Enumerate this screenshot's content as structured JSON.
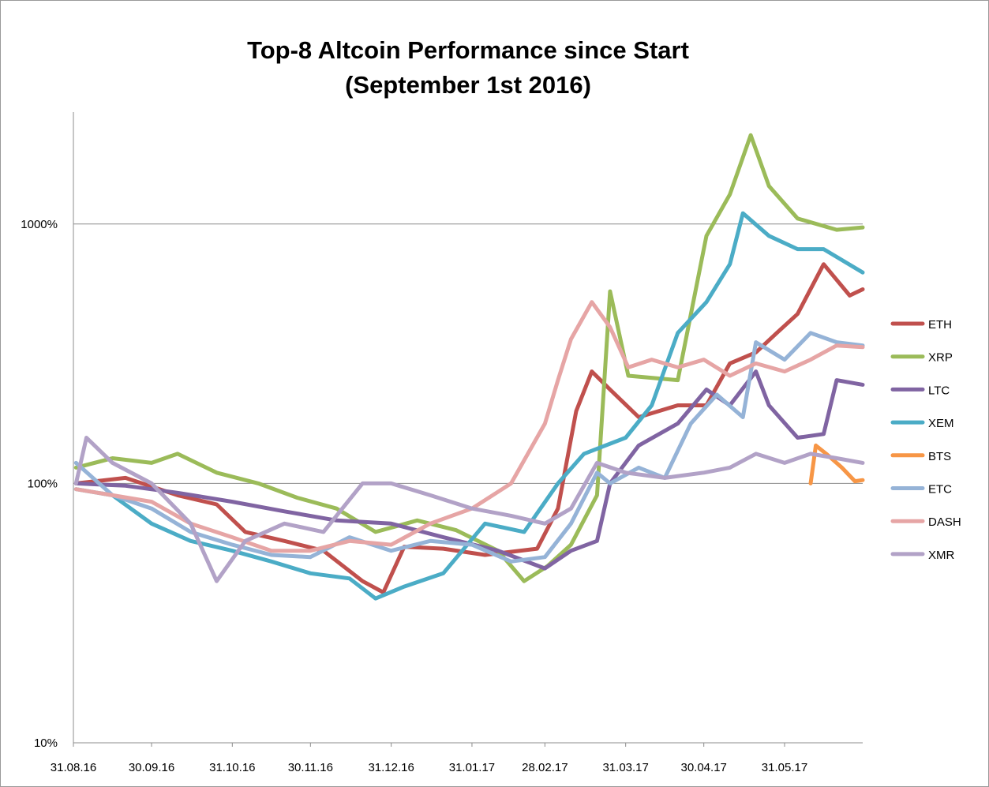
{
  "chart_data": {
    "type": "line",
    "title_line1": "Top-8 Altcoin Performance since Start",
    "title_line2": "(September 1st 2016)",
    "y_scale": "log",
    "y_ticks": [
      10,
      100,
      1000
    ],
    "y_tick_labels": [
      "10%",
      "100%",
      "1000%"
    ],
    "ylim": [
      10,
      2700
    ],
    "xlim": [
      "2016-08-31",
      "2017-06-30"
    ],
    "x_ticks": [
      "2016-08-31",
      "2016-09-30",
      "2016-10-31",
      "2016-11-30",
      "2016-12-31",
      "2017-01-31",
      "2017-02-28",
      "2017-03-31",
      "2017-04-30",
      "2017-05-31"
    ],
    "x_tick_labels": [
      "31.08.16",
      "30.09.16",
      "31.10.16",
      "30.11.16",
      "31.12.16",
      "31.01.17",
      "28.02.17",
      "31.03.17",
      "30.04.17",
      "31.05.17"
    ],
    "grid": "horizontal",
    "legend": "right",
    "series": [
      {
        "name": "ETH",
        "color": "#c0504d",
        "points": [
          [
            "2016-09-01",
            100
          ],
          [
            "2016-09-20",
            105
          ],
          [
            "2016-10-10",
            90
          ],
          [
            "2016-10-25",
            83
          ],
          [
            "2016-11-05",
            65
          ],
          [
            "2016-11-20",
            60
          ],
          [
            "2016-12-05",
            55
          ],
          [
            "2016-12-20",
            42
          ],
          [
            "2016-12-28",
            38
          ],
          [
            "2017-01-05",
            57
          ],
          [
            "2017-01-20",
            56
          ],
          [
            "2017-02-05",
            53
          ],
          [
            "2017-02-25",
            56
          ],
          [
            "2017-03-05",
            80
          ],
          [
            "2017-03-12",
            190
          ],
          [
            "2017-03-18",
            270
          ],
          [
            "2017-03-25",
            230
          ],
          [
            "2017-04-05",
            180
          ],
          [
            "2017-04-20",
            200
          ],
          [
            "2017-05-01",
            200
          ],
          [
            "2017-05-10",
            290
          ],
          [
            "2017-05-20",
            320
          ],
          [
            "2017-05-28",
            380
          ],
          [
            "2017-06-05",
            450
          ],
          [
            "2017-06-15",
            700
          ],
          [
            "2017-06-25",
            530
          ],
          [
            "2017-06-30",
            560
          ]
        ]
      },
      {
        "name": "XRP",
        "color": "#9bbb59",
        "points": [
          [
            "2016-09-01",
            115
          ],
          [
            "2016-09-15",
            125
          ],
          [
            "2016-09-30",
            120
          ],
          [
            "2016-10-10",
            130
          ],
          [
            "2016-10-25",
            110
          ],
          [
            "2016-11-10",
            100
          ],
          [
            "2016-11-25",
            88
          ],
          [
            "2016-12-10",
            80
          ],
          [
            "2016-12-25",
            65
          ],
          [
            "2017-01-10",
            72
          ],
          [
            "2017-01-25",
            66
          ],
          [
            "2017-02-10",
            55
          ],
          [
            "2017-02-20",
            42
          ],
          [
            "2017-03-01",
            48
          ],
          [
            "2017-03-10",
            58
          ],
          [
            "2017-03-20",
            90
          ],
          [
            "2017-03-25",
            550
          ],
          [
            "2017-04-01",
            260
          ],
          [
            "2017-04-20",
            250
          ],
          [
            "2017-05-01",
            900
          ],
          [
            "2017-05-10",
            1300
          ],
          [
            "2017-05-18",
            2200
          ],
          [
            "2017-05-25",
            1400
          ],
          [
            "2017-06-05",
            1050
          ],
          [
            "2017-06-20",
            950
          ],
          [
            "2017-06-30",
            970
          ]
        ]
      },
      {
        "name": "LTC",
        "color": "#8064a2",
        "points": [
          [
            "2016-09-01",
            100
          ],
          [
            "2016-09-20",
            98
          ],
          [
            "2016-10-10",
            92
          ],
          [
            "2016-10-31",
            85
          ],
          [
            "2016-11-20",
            78
          ],
          [
            "2016-12-10",
            72
          ],
          [
            "2016-12-31",
            70
          ],
          [
            "2017-01-20",
            62
          ],
          [
            "2017-02-10",
            55
          ],
          [
            "2017-02-28",
            47
          ],
          [
            "2017-03-10",
            55
          ],
          [
            "2017-03-20",
            60
          ],
          [
            "2017-03-25",
            100
          ],
          [
            "2017-04-05",
            140
          ],
          [
            "2017-04-20",
            170
          ],
          [
            "2017-05-01",
            230
          ],
          [
            "2017-05-10",
            200
          ],
          [
            "2017-05-20",
            270
          ],
          [
            "2017-05-25",
            200
          ],
          [
            "2017-06-05",
            150
          ],
          [
            "2017-06-15",
            155
          ],
          [
            "2017-06-20",
            250
          ],
          [
            "2017-06-30",
            240
          ]
        ]
      },
      {
        "name": "XEM",
        "color": "#4bacc6",
        "points": [
          [
            "2016-09-01",
            95
          ],
          [
            "2016-09-15",
            90
          ],
          [
            "2016-09-30",
            70
          ],
          [
            "2016-10-15",
            60
          ],
          [
            "2016-10-31",
            55
          ],
          [
            "2016-11-15",
            50
          ],
          [
            "2016-11-30",
            45
          ],
          [
            "2016-12-15",
            43
          ],
          [
            "2016-12-25",
            36
          ],
          [
            "2017-01-05",
            40
          ],
          [
            "2017-01-20",
            45
          ],
          [
            "2017-02-05",
            70
          ],
          [
            "2017-02-20",
            65
          ],
          [
            "2017-03-05",
            100
          ],
          [
            "2017-03-15",
            130
          ],
          [
            "2017-03-31",
            150
          ],
          [
            "2017-04-10",
            200
          ],
          [
            "2017-04-20",
            380
          ],
          [
            "2017-05-01",
            500
          ],
          [
            "2017-05-10",
            700
          ],
          [
            "2017-05-15",
            1100
          ],
          [
            "2017-05-25",
            900
          ],
          [
            "2017-06-05",
            800
          ],
          [
            "2017-06-15",
            800
          ],
          [
            "2017-06-30",
            650
          ]
        ]
      },
      {
        "name": "BTS",
        "color": "#f79646",
        "points": [
          [
            "2017-06-10",
            100
          ],
          [
            "2017-06-12",
            140
          ],
          [
            "2017-06-16",
            130
          ],
          [
            "2017-06-22",
            115
          ],
          [
            "2017-06-27",
            102
          ],
          [
            "2017-06-30",
            103
          ]
        ]
      },
      {
        "name": "ETC",
        "color": "#95b3d7",
        "points": [
          [
            "2016-09-01",
            120
          ],
          [
            "2016-09-15",
            90
          ],
          [
            "2016-09-30",
            80
          ],
          [
            "2016-10-15",
            65
          ],
          [
            "2016-10-31",
            58
          ],
          [
            "2016-11-15",
            53
          ],
          [
            "2016-11-30",
            52
          ],
          [
            "2016-12-15",
            62
          ],
          [
            "2016-12-31",
            55
          ],
          [
            "2017-01-15",
            60
          ],
          [
            "2017-01-31",
            58
          ],
          [
            "2017-02-15",
            50
          ],
          [
            "2017-02-28",
            52
          ],
          [
            "2017-03-10",
            70
          ],
          [
            "2017-03-20",
            110
          ],
          [
            "2017-03-25",
            100
          ],
          [
            "2017-04-05",
            115
          ],
          [
            "2017-04-15",
            105
          ],
          [
            "2017-04-25",
            170
          ],
          [
            "2017-05-05",
            220
          ],
          [
            "2017-05-15",
            180
          ],
          [
            "2017-05-20",
            350
          ],
          [
            "2017-05-31",
            300
          ],
          [
            "2017-06-10",
            380
          ],
          [
            "2017-06-20",
            350
          ],
          [
            "2017-06-30",
            340
          ]
        ]
      },
      {
        "name": "DASH",
        "color": "#e6a5a5",
        "points": [
          [
            "2016-09-01",
            95
          ],
          [
            "2016-09-15",
            90
          ],
          [
            "2016-09-30",
            85
          ],
          [
            "2016-10-15",
            70
          ],
          [
            "2016-10-31",
            62
          ],
          [
            "2016-11-15",
            55
          ],
          [
            "2016-11-30",
            55
          ],
          [
            "2016-12-15",
            60
          ],
          [
            "2016-12-31",
            58
          ],
          [
            "2017-01-15",
            70
          ],
          [
            "2017-01-31",
            80
          ],
          [
            "2017-02-15",
            100
          ],
          [
            "2017-02-28",
            170
          ],
          [
            "2017-03-05",
            250
          ],
          [
            "2017-03-10",
            360
          ],
          [
            "2017-03-18",
            500
          ],
          [
            "2017-03-25",
            400
          ],
          [
            "2017-04-01",
            280
          ],
          [
            "2017-04-10",
            300
          ],
          [
            "2017-04-20",
            280
          ],
          [
            "2017-04-30",
            300
          ],
          [
            "2017-05-10",
            260
          ],
          [
            "2017-05-20",
            290
          ],
          [
            "2017-05-31",
            270
          ],
          [
            "2017-06-10",
            300
          ],
          [
            "2017-06-20",
            340
          ],
          [
            "2017-06-30",
            335
          ]
        ]
      },
      {
        "name": "XMR",
        "color": "#b2a2c7",
        "points": [
          [
            "2016-09-01",
            100
          ],
          [
            "2016-09-05",
            150
          ],
          [
            "2016-09-15",
            120
          ],
          [
            "2016-09-30",
            100
          ],
          [
            "2016-10-15",
            70
          ],
          [
            "2016-10-25",
            42
          ],
          [
            "2016-11-05",
            60
          ],
          [
            "2016-11-20",
            70
          ],
          [
            "2016-12-05",
            65
          ],
          [
            "2016-12-20",
            100
          ],
          [
            "2016-12-31",
            100
          ],
          [
            "2017-01-15",
            90
          ],
          [
            "2017-01-31",
            80
          ],
          [
            "2017-02-15",
            75
          ],
          [
            "2017-02-28",
            70
          ],
          [
            "2017-03-10",
            80
          ],
          [
            "2017-03-20",
            120
          ],
          [
            "2017-03-31",
            110
          ],
          [
            "2017-04-15",
            105
          ],
          [
            "2017-04-30",
            110
          ],
          [
            "2017-05-10",
            115
          ],
          [
            "2017-05-20",
            130
          ],
          [
            "2017-05-31",
            120
          ],
          [
            "2017-06-10",
            130
          ],
          [
            "2017-06-20",
            125
          ],
          [
            "2017-06-30",
            120
          ]
        ]
      }
    ]
  }
}
